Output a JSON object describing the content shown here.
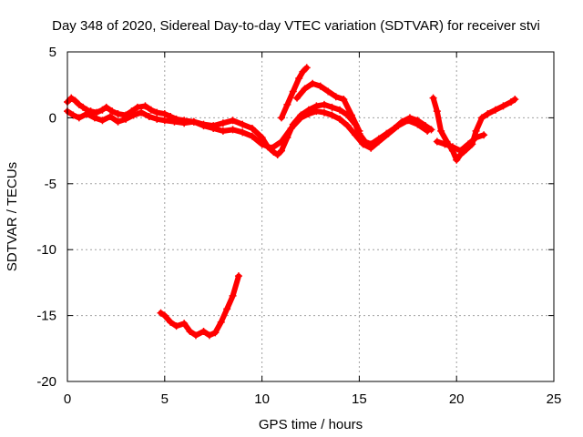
{
  "chart_data": {
    "type": "scatter",
    "title": "Day 348 of 2020, Sidereal Day-to-day VTEC variation (SDTVAR) for receiver stvi",
    "xlabel": "GPS time / hours",
    "ylabel": "SDTVAR / TECUs",
    "xlim": [
      0,
      25
    ],
    "ylim": [
      -20,
      5
    ],
    "x_ticks": [
      0,
      5,
      10,
      15,
      20,
      25
    ],
    "y_ticks": [
      -20,
      -15,
      -10,
      -5,
      0,
      5
    ],
    "x_tick_labels": [
      "0",
      "5",
      "10",
      "15",
      "20",
      "25"
    ],
    "y_tick_labels": [
      "-20",
      "-15",
      "-10",
      "-5",
      "0",
      "5"
    ],
    "grid": true,
    "marker": "+",
    "colors": {
      "series": "#ff0000",
      "grid": "#a0a0a0",
      "axis": "#000000"
    },
    "series": [
      {
        "name": "main-upper",
        "x": [
          0.0,
          0.2,
          0.4,
          0.6,
          0.8,
          1.0,
          1.2,
          1.5,
          1.8,
          2.0,
          2.3,
          2.6,
          3.0,
          3.3,
          3.6,
          4.0,
          4.3,
          4.6,
          5.0,
          5.3,
          5.6,
          6.0,
          6.5,
          7.0,
          7.5,
          8.0,
          8.5,
          9.0,
          9.5,
          10.0,
          10.3,
          10.6,
          10.8,
          11.0,
          11.3,
          11.6,
          12.0,
          12.4,
          12.8,
          13.2,
          13.6,
          14.0,
          14.4,
          14.8,
          15.0,
          15.3,
          15.6,
          16.0,
          16.4,
          16.8,
          17.2,
          17.6,
          18.0,
          18.4,
          18.7
        ],
        "y": [
          1.2,
          1.5,
          1.3,
          1.0,
          0.8,
          0.6,
          0.5,
          0.4,
          0.6,
          0.8,
          0.5,
          0.3,
          0.2,
          0.5,
          0.8,
          0.9,
          0.6,
          0.4,
          0.3,
          0.1,
          -0.1,
          -0.2,
          -0.3,
          -0.5,
          -0.6,
          -0.4,
          -0.2,
          -0.5,
          -0.8,
          -1.5,
          -2.2,
          -2.6,
          -2.8,
          -2.5,
          -1.5,
          -0.5,
          0.2,
          0.6,
          0.9,
          1.0,
          0.8,
          0.6,
          0.2,
          -0.5,
          -1.2,
          -1.8,
          -2.0,
          -1.6,
          -1.2,
          -0.8,
          -0.3,
          0.0,
          -0.2,
          -0.6,
          -0.9
        ]
      },
      {
        "name": "main-lower",
        "x": [
          0.0,
          0.3,
          0.6,
          1.0,
          1.4,
          1.8,
          2.2,
          2.6,
          3.0,
          3.4,
          3.8,
          4.2,
          4.6,
          5.0,
          5.5,
          6.0,
          6.5,
          7.0,
          7.5,
          8.0,
          8.5,
          9.0,
          9.5,
          10.0,
          10.5,
          11.0,
          11.5,
          12.0,
          12.4,
          12.8,
          13.2,
          13.6,
          14.0,
          14.4,
          14.8,
          15.2,
          15.6,
          16.0,
          16.5,
          17.0,
          17.5,
          18.0,
          18.5
        ],
        "y": [
          0.5,
          0.2,
          0.0,
          0.3,
          0.0,
          -0.2,
          0.1,
          -0.3,
          -0.1,
          0.2,
          0.4,
          0.1,
          -0.1,
          -0.2,
          -0.3,
          -0.4,
          -0.3,
          -0.6,
          -0.8,
          -1.0,
          -0.9,
          -1.1,
          -1.4,
          -2.0,
          -2.3,
          -1.8,
          -0.8,
          0.0,
          0.3,
          0.5,
          0.4,
          0.2,
          -0.1,
          -0.6,
          -1.3,
          -2.0,
          -2.3,
          -1.8,
          -1.2,
          -0.6,
          -0.2,
          -0.5,
          -1.0
        ]
      },
      {
        "name": "spike-11-12",
        "x": [
          11.0,
          11.3,
          11.6,
          11.9,
          12.1,
          12.3
        ],
        "y": [
          0.0,
          1.0,
          2.0,
          3.0,
          3.5,
          3.8
        ]
      },
      {
        "name": "bump-12-14",
        "x": [
          11.8,
          12.2,
          12.6,
          13.0,
          13.4,
          13.8,
          14.2,
          14.6,
          15.0
        ],
        "y": [
          1.5,
          2.2,
          2.6,
          2.4,
          2.0,
          1.6,
          1.4,
          0.2,
          -1.0
        ]
      },
      {
        "name": "late-segment",
        "x": [
          18.8,
          19.0,
          19.2,
          19.5,
          19.8,
          20.0,
          20.2,
          20.5,
          20.8,
          21.0,
          21.3,
          21.6,
          22.0,
          22.4,
          22.8,
          23.0
        ],
        "y": [
          1.5,
          0.5,
          -1.0,
          -1.8,
          -2.5,
          -3.2,
          -2.8,
          -2.4,
          -2.0,
          -1.0,
          0.0,
          0.3,
          0.6,
          0.9,
          1.2,
          1.4
        ]
      },
      {
        "name": "late-lower",
        "x": [
          19.0,
          19.4,
          19.8,
          20.2,
          20.6,
          21.0,
          21.4
        ],
        "y": [
          -1.8,
          -2.0,
          -2.2,
          -2.5,
          -2.0,
          -1.5,
          -1.3
        ]
      },
      {
        "name": "early-low-segment",
        "x": [
          4.8,
          5.0,
          5.3,
          5.6,
          6.0,
          6.3,
          6.6,
          7.0,
          7.3,
          7.6,
          7.9,
          8.2,
          8.5,
          8.8
        ],
        "y": [
          -14.8,
          -15.0,
          -15.5,
          -15.8,
          -15.6,
          -16.2,
          -16.5,
          -16.2,
          -16.5,
          -16.3,
          -15.5,
          -14.5,
          -13.5,
          -12.0
        ]
      }
    ]
  }
}
